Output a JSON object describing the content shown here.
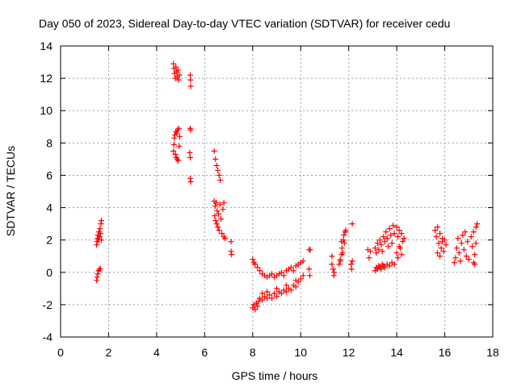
{
  "chart_data": {
    "type": "scatter",
    "title": "Day 050 of 2023, Sidereal Day-to-day VTEC variation (SDTVAR) for receiver cedu",
    "xlabel": "GPS time / hours",
    "ylabel": "SDTVAR / TECUs",
    "xlim": [
      0,
      18
    ],
    "ylim": [
      -4,
      14
    ],
    "xticks": [
      0,
      2,
      4,
      6,
      8,
      10,
      12,
      14,
      16,
      18
    ],
    "yticks": [
      -4,
      -2,
      0,
      2,
      4,
      6,
      8,
      10,
      12,
      14
    ],
    "xtick_labels": [
      "0",
      "2",
      "4",
      "6",
      "8",
      "10",
      "12",
      "14",
      "16",
      "18"
    ],
    "ytick_labels": [
      "-4",
      "-2",
      "0",
      "2",
      "4",
      "6",
      "8",
      "10",
      "12",
      "14"
    ],
    "grid": true,
    "marker": "plus",
    "marker_color": "#ff0000",
    "series": [
      {
        "name": "SDTVAR",
        "points": [
          [
            1.5,
            -0.5
          ],
          [
            1.52,
            -0.3
          ],
          [
            1.55,
            -0.1
          ],
          [
            1.58,
            0.1
          ],
          [
            1.62,
            0.2
          ],
          [
            1.66,
            0.2
          ],
          [
            1.5,
            1.7
          ],
          [
            1.52,
            1.9
          ],
          [
            1.54,
            2.1
          ],
          [
            1.56,
            2.3
          ],
          [
            1.58,
            2.0
          ],
          [
            1.6,
            2.5
          ],
          [
            1.62,
            2.2
          ],
          [
            1.64,
            2.7
          ],
          [
            1.66,
            2.4
          ],
          [
            1.68,
            3.0
          ],
          [
            1.7,
            3.2
          ],
          [
            1.7,
            2.0
          ],
          [
            4.7,
            12.9
          ],
          [
            4.72,
            12.6
          ],
          [
            4.75,
            12.3
          ],
          [
            4.78,
            12.0
          ],
          [
            4.8,
            12.7
          ],
          [
            4.83,
            12.4
          ],
          [
            4.86,
            12.1
          ],
          [
            4.89,
            12.5
          ],
          [
            4.92,
            11.9
          ],
          [
            4.95,
            12.2
          ],
          [
            4.7,
            7.5
          ],
          [
            4.72,
            7.9
          ],
          [
            4.74,
            8.3
          ],
          [
            4.76,
            8.5
          ],
          [
            4.78,
            7.3
          ],
          [
            4.8,
            8.7
          ],
          [
            4.82,
            7.1
          ],
          [
            4.84,
            8.6
          ],
          [
            4.86,
            7.0
          ],
          [
            4.88,
            8.8
          ],
          [
            4.9,
            6.9
          ],
          [
            4.92,
            8.9
          ],
          [
            4.94,
            7.8
          ],
          [
            4.96,
            8.4
          ],
          [
            5.4,
            12.2
          ],
          [
            5.41,
            11.9
          ],
          [
            5.42,
            11.5
          ],
          [
            5.4,
            8.9
          ],
          [
            5.42,
            8.8
          ],
          [
            5.38,
            7.4
          ],
          [
            5.4,
            7.1
          ],
          [
            5.4,
            5.8
          ],
          [
            5.42,
            5.6
          ],
          [
            6.4,
            7.5
          ],
          [
            6.45,
            7.0
          ],
          [
            6.5,
            6.6
          ],
          [
            6.55,
            6.3
          ],
          [
            6.6,
            6.0
          ],
          [
            6.65,
            5.7
          ],
          [
            6.4,
            4.4
          ],
          [
            6.42,
            3.5
          ],
          [
            6.44,
            4.1
          ],
          [
            6.46,
            3.2
          ],
          [
            6.48,
            4.3
          ],
          [
            6.5,
            3.0
          ],
          [
            6.52,
            3.8
          ],
          [
            6.55,
            2.8
          ],
          [
            6.58,
            3.6
          ],
          [
            6.6,
            2.6
          ],
          [
            6.64,
            4.2
          ],
          [
            6.68,
            3.3
          ],
          [
            6.72,
            2.4
          ],
          [
            6.76,
            3.9
          ],
          [
            6.8,
            2.2
          ],
          [
            6.85,
            2.1
          ],
          [
            6.8,
            4.3
          ],
          [
            7.1,
            1.9
          ],
          [
            7.1,
            1.3
          ],
          [
            7.12,
            1.1
          ],
          [
            8.0,
            -2.2
          ],
          [
            8.05,
            -2.0
          ],
          [
            8.1,
            -2.3
          ],
          [
            8.15,
            -1.9
          ],
          [
            8.2,
            -2.1
          ],
          [
            8.25,
            -1.8
          ],
          [
            8.3,
            -1.6
          ],
          [
            8.4,
            -1.7
          ],
          [
            8.5,
            -1.5
          ],
          [
            8.6,
            -1.6
          ],
          [
            8.7,
            -1.4
          ],
          [
            8.8,
            -1.6
          ],
          [
            8.9,
            -1.3
          ],
          [
            9.0,
            -1.5
          ],
          [
            9.1,
            -1.2
          ],
          [
            9.2,
            -1.3
          ],
          [
            9.3,
            -1.1
          ],
          [
            9.4,
            -1.2
          ],
          [
            9.5,
            -1.0
          ],
          [
            9.6,
            -1.1
          ],
          [
            9.7,
            -0.8
          ],
          [
            9.8,
            -0.9
          ],
          [
            9.9,
            -0.6
          ],
          [
            10.0,
            -0.4
          ],
          [
            10.1,
            -0.2
          ],
          [
            8.0,
            0.8
          ],
          [
            8.05,
            0.6
          ],
          [
            8.1,
            0.5
          ],
          [
            8.2,
            0.3
          ],
          [
            8.3,
            0.1
          ],
          [
            8.4,
            -0.1
          ],
          [
            8.5,
            -0.2
          ],
          [
            8.6,
            -0.3
          ],
          [
            8.7,
            -0.2
          ],
          [
            8.8,
            -0.1
          ],
          [
            8.9,
            -0.3
          ],
          [
            9.0,
            -0.2
          ],
          [
            9.1,
            -0.1
          ],
          [
            9.2,
            0.0
          ],
          [
            9.3,
            -0.2
          ],
          [
            9.4,
            0.1
          ],
          [
            9.5,
            0.2
          ],
          [
            9.6,
            0.3
          ],
          [
            9.7,
            0.1
          ],
          [
            9.8,
            0.4
          ],
          [
            9.9,
            0.5
          ],
          [
            10.0,
            0.6
          ],
          [
            10.1,
            0.7
          ],
          [
            8.4,
            -1.3
          ],
          [
            8.6,
            -1.2
          ],
          [
            9.0,
            -1.0
          ],
          [
            9.4,
            -0.8
          ],
          [
            9.8,
            -0.5
          ],
          [
            10.35,
            1.4
          ],
          [
            10.4,
            1.4
          ],
          [
            10.35,
            0.2
          ],
          [
            10.38,
            -0.2
          ],
          [
            11.3,
            1.0
          ],
          [
            11.3,
            0.5
          ],
          [
            11.35,
            0.2
          ],
          [
            11.38,
            -0.2
          ],
          [
            11.4,
            0.0
          ],
          [
            11.6,
            0.5
          ],
          [
            11.65,
            0.7
          ],
          [
            11.7,
            1.1
          ],
          [
            11.72,
            1.5
          ],
          [
            11.75,
            1.2
          ],
          [
            11.78,
            2.0
          ],
          [
            11.8,
            2.3
          ],
          [
            11.82,
            1.8
          ],
          [
            11.85,
            2.5
          ],
          [
            11.88,
            2.6
          ],
          [
            11.7,
            1.9
          ],
          [
            11.65,
            0.8
          ],
          [
            12.1,
            0.5
          ],
          [
            12.15,
            0.7
          ],
          [
            12.12,
            0.2
          ],
          [
            12.15,
            3.0
          ],
          [
            12.8,
            1.4
          ],
          [
            12.85,
            0.9
          ],
          [
            12.9,
            1.3
          ],
          [
            13.1,
            0.1
          ],
          [
            13.15,
            0.3
          ],
          [
            13.2,
            0.2
          ],
          [
            13.25,
            0.4
          ],
          [
            13.3,
            0.3
          ],
          [
            13.35,
            0.2
          ],
          [
            13.4,
            0.5
          ],
          [
            13.45,
            0.4
          ],
          [
            13.5,
            0.3
          ],
          [
            13.6,
            0.5
          ],
          [
            13.7,
            0.4
          ],
          [
            13.8,
            0.6
          ],
          [
            13.9,
            0.5
          ],
          [
            13.1,
            1.5
          ],
          [
            13.15,
            1.2
          ],
          [
            13.2,
            1.8
          ],
          [
            13.25,
            1.4
          ],
          [
            13.3,
            2.0
          ],
          [
            13.35,
            1.7
          ],
          [
            13.4,
            1.3
          ],
          [
            13.45,
            2.2
          ],
          [
            13.5,
            1.9
          ],
          [
            13.55,
            2.5
          ],
          [
            13.6,
            2.1
          ],
          [
            13.65,
            1.6
          ],
          [
            13.7,
            2.7
          ],
          [
            13.75,
            2.3
          ],
          [
            13.8,
            1.8
          ],
          [
            13.85,
            2.9
          ],
          [
            13.9,
            2.4
          ],
          [
            14.0,
            2.8
          ],
          [
            14.05,
            2.2
          ],
          [
            14.1,
            2.6
          ],
          [
            14.15,
            1.5
          ],
          [
            14.2,
            2.4
          ],
          [
            14.25,
            1.9
          ],
          [
            14.3,
            2.1
          ],
          [
            14.0,
            1.2
          ],
          [
            14.1,
            1.6
          ],
          [
            14.2,
            1.1
          ],
          [
            14.05,
            0.9
          ],
          [
            15.6,
            2.6
          ],
          [
            15.65,
            2.2
          ],
          [
            15.7,
            2.8
          ],
          [
            15.75,
            1.8
          ],
          [
            15.8,
            2.4
          ],
          [
            15.85,
            1.5
          ],
          [
            15.9,
            2.1
          ],
          [
            15.95,
            1.3
          ],
          [
            16.0,
            2.0
          ],
          [
            16.05,
            1.7
          ],
          [
            15.7,
            1.2
          ],
          [
            15.8,
            1.0
          ],
          [
            15.9,
            1.9
          ],
          [
            16.4,
            0.6
          ],
          [
            16.45,
            0.9
          ],
          [
            16.5,
            1.5
          ],
          [
            16.55,
            2.1
          ],
          [
            16.6,
            1.2
          ],
          [
            16.65,
            0.7
          ],
          [
            16.7,
            1.8
          ],
          [
            16.75,
            2.3
          ],
          [
            16.8,
            1.4
          ],
          [
            16.85,
            2.5
          ],
          [
            16.9,
            1.0
          ],
          [
            16.95,
            1.9
          ],
          [
            17.0,
            0.8
          ],
          [
            17.1,
            2.2
          ],
          [
            17.15,
            1.6
          ],
          [
            17.2,
            2.5
          ],
          [
            17.25,
            1.1
          ],
          [
            17.3,
            2.8
          ],
          [
            17.35,
            3.0
          ],
          [
            17.2,
            0.6
          ],
          [
            17.25,
            0.5
          ],
          [
            17.3,
            1.8
          ]
        ]
      }
    ]
  }
}
